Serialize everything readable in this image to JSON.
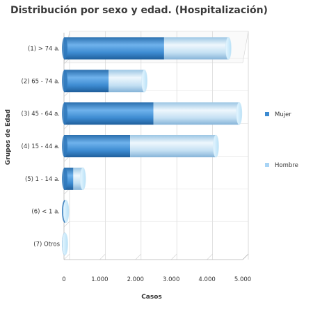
{
  "chart_data": {
    "type": "bar",
    "orientation": "horizontal",
    "stacked": true,
    "style": "3d-cylinder",
    "title": "Distribución por sexo y edad. (Hospitalización)",
    "xlabel": "Casos",
    "ylabel": "Grupos de Edad",
    "xlim": [
      0,
      5000
    ],
    "xticks": [
      "0",
      "1.000",
      "2.000",
      "3.000",
      "4.000",
      "5.000"
    ],
    "xtick_values": [
      0,
      1000,
      2000,
      3000,
      4000,
      5000
    ],
    "grid": true,
    "legend_position": "right",
    "categories": [
      "(1) > 74 a.",
      "(2) 65 - 74 a.",
      "(3) 45 - 64 a.",
      "(4) 15 - 44 a.",
      "(5) 1 - 14 a.",
      "(6) < 1 a.",
      "(7) Otros"
    ],
    "series": [
      {
        "name": "Mujer",
        "color": "#3d8bd1",
        "values": [
          2800,
          1250,
          2500,
          1850,
          260,
          30,
          15
        ]
      },
      {
        "name": "Hombre",
        "color": "#a8d4f5",
        "values": [
          1800,
          1000,
          2400,
          2400,
          270,
          30,
          15
        ]
      }
    ]
  }
}
